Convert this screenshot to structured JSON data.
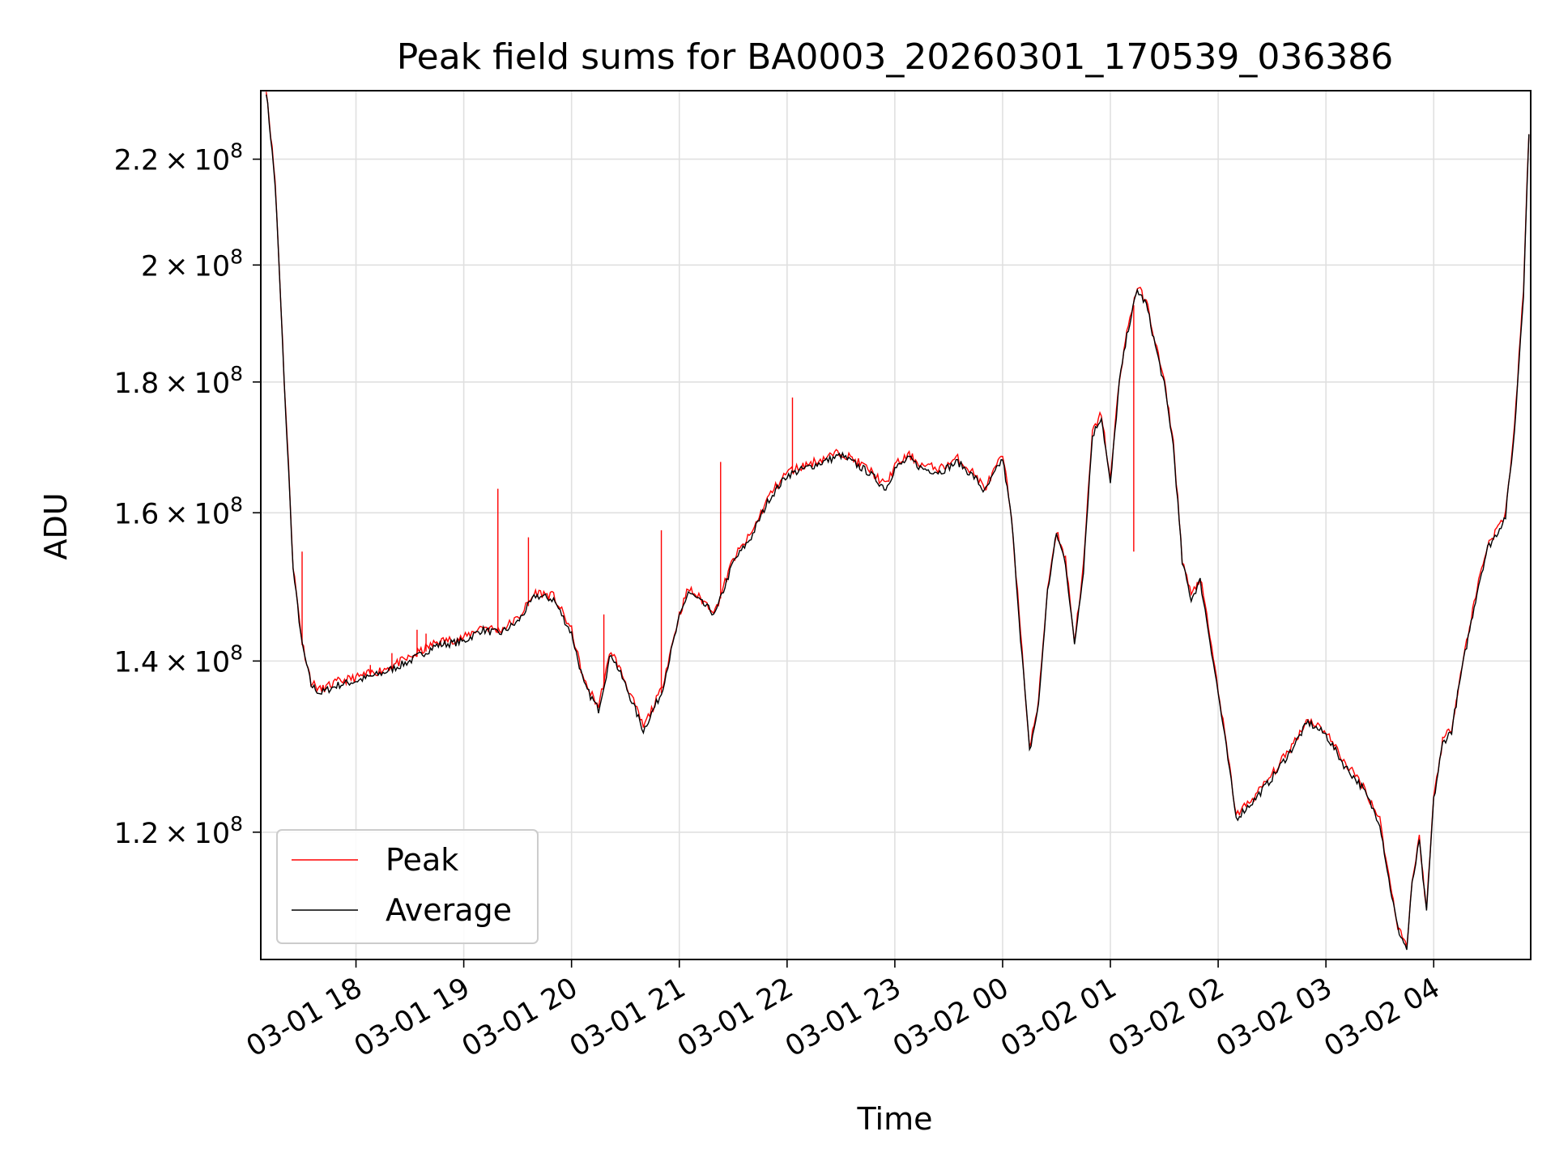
{
  "chart_data": {
    "type": "line",
    "title": "Peak field sums for BA0003_20260301_170539_036386",
    "xlabel": "Time",
    "ylabel": "ADU",
    "y_scale": "log",
    "ylim": [
      107000000,
      234000000
    ],
    "xlim": [
      "03-01 17:07",
      "03-02 04:54"
    ],
    "grid": true,
    "legend_position": "lower left",
    "x_tick_labels": [
      "03-01 18",
      "03-01 19",
      "03-01 20",
      "03-01 21",
      "03-01 22",
      "03-01 23",
      "03-02 00",
      "03-02 01",
      "03-02 02",
      "03-02 03",
      "03-02 04"
    ],
    "x_tick_times": [
      "03-01 18:00",
      "03-01 19:00",
      "03-01 20:00",
      "03-01 21:00",
      "03-01 22:00",
      "03-01 23:00",
      "03-02 00:00",
      "03-02 01:00",
      "03-02 02:00",
      "03-02 03:00",
      "03-02 04:00"
    ],
    "y_ticks": [
      {
        "value": 120000000,
        "mantissa": "1.2",
        "exponent": "8"
      },
      {
        "value": 140000000,
        "mantissa": "1.4",
        "exponent": "8"
      },
      {
        "value": 160000000,
        "mantissa": "1.6",
        "exponent": "8"
      },
      {
        "value": 180000000,
        "mantissa": "1.8",
        "exponent": "8"
      },
      {
        "value": 200000000,
        "mantissa": "2",
        "exponent": "8"
      },
      {
        "value": 220000000,
        "mantissa": "2.2",
        "exponent": "8"
      }
    ],
    "series": [
      {
        "name": "Average",
        "color": "#000000",
        "x": [
          "03-01 17:10",
          "03-01 17:15",
          "03-01 17:20",
          "03-01 17:25",
          "03-01 17:30",
          "03-01 17:35",
          "03-01 17:40",
          "03-01 17:45",
          "03-01 17:50",
          "03-01 18:00",
          "03-01 18:15",
          "03-01 18:30",
          "03-01 18:45",
          "03-01 19:00",
          "03-01 19:10",
          "03-01 19:20",
          "03-01 19:30",
          "03-01 19:40",
          "03-01 19:50",
          "03-01 20:00",
          "03-01 20:07",
          "03-01 20:15",
          "03-01 20:22",
          "03-01 20:30",
          "03-01 20:40",
          "03-01 20:50",
          "03-01 21:00",
          "03-01 21:05",
          "03-01 21:10",
          "03-01 21:20",
          "03-01 21:30",
          "03-01 21:40",
          "03-01 21:50",
          "03-01 22:00",
          "03-01 22:15",
          "03-01 22:30",
          "03-01 22:45",
          "03-01 22:55",
          "03-01 23:00",
          "03-01 23:08",
          "03-01 23:15",
          "03-01 23:25",
          "03-01 23:35",
          "03-01 23:45",
          "03-01 23:50",
          "03-01 23:55",
          "03-02 00:00",
          "03-02 00:05",
          "03-02 00:10",
          "03-02 00:15",
          "03-02 00:20",
          "03-02 00:25",
          "03-02 00:30",
          "03-02 00:35",
          "03-02 00:40",
          "03-02 00:45",
          "03-02 00:50",
          "03-02 00:55",
          "03-02 01:00",
          "03-02 01:05",
          "03-02 01:10",
          "03-02 01:15",
          "03-02 01:20",
          "03-02 01:25",
          "03-02 01:30",
          "03-02 01:35",
          "03-02 01:40",
          "03-02 01:45",
          "03-02 01:50",
          "03-02 02:00",
          "03-02 02:10",
          "03-02 02:20",
          "03-02 02:30",
          "03-02 02:40",
          "03-02 02:50",
          "03-02 03:00",
          "03-02 03:10",
          "03-02 03:20",
          "03-02 03:30",
          "03-02 03:35",
          "03-02 03:40",
          "03-02 03:45",
          "03-02 03:48",
          "03-02 03:52",
          "03-02 03:56",
          "03-02 04:00",
          "03-02 04:05",
          "03-02 04:10",
          "03-02 04:15",
          "03-02 04:20",
          "03-02 04:25",
          "03-02 04:30",
          "03-02 04:35",
          "03-02 04:40",
          "03-02 04:45",
          "03-02 04:50",
          "03-02 04:53"
        ],
        "values": [
          234000000,
          215000000,
          180000000,
          152000000,
          142000000,
          137000000,
          136000000,
          136500000,
          137000000,
          137500000,
          138500000,
          140000000,
          142000000,
          142500000,
          144000000,
          143500000,
          145000000,
          148500000,
          148000000,
          143500000,
          137000000,
          134000000,
          141000000,
          137000000,
          131500000,
          136000000,
          145500000,
          149000000,
          148000000,
          146000000,
          153000000,
          156500000,
          162000000,
          165500000,
          167000000,
          168500000,
          166000000,
          163500000,
          166500000,
          168000000,
          166500000,
          166000000,
          167500000,
          165000000,
          163000000,
          165500000,
          168000000,
          159000000,
          143000000,
          129000000,
          134500000,
          149000000,
          157000000,
          153000000,
          142000000,
          152000000,
          171500000,
          174500000,
          164000000,
          180000000,
          189000000,
          195500000,
          193000000,
          186000000,
          179500000,
          170000000,
          153000000,
          148000000,
          150500000,
          136000000,
          121500000,
          123500000,
          126000000,
          129000000,
          132500000,
          131000000,
          127500000,
          125000000,
          121000000,
          115000000,
          110000000,
          108000000,
          114500000,
          119000000,
          111500000,
          123500000,
          130000000,
          131500000,
          138000000,
          144000000,
          150000000,
          155000000,
          157000000,
          159500000,
          172000000,
          195000000,
          225000000
        ]
      },
      {
        "name": "Peak",
        "color": "#ff0000",
        "spikes": [
          {
            "x": "03-01 17:30",
            "value": 154500000
          },
          {
            "x": "03-01 18:08",
            "value": 139500000
          },
          {
            "x": "03-01 18:20",
            "value": 141000000
          },
          {
            "x": "03-01 18:34",
            "value": 144000000
          },
          {
            "x": "03-01 18:39",
            "value": 143500000
          },
          {
            "x": "03-01 19:19",
            "value": 163500000
          },
          {
            "x": "03-01 19:36",
            "value": 156500000
          },
          {
            "x": "03-01 20:18",
            "value": 146000000
          },
          {
            "x": "03-01 20:50",
            "value": 157500000
          },
          {
            "x": "03-01 21:23",
            "value": 167500000
          },
          {
            "x": "03-01 22:03",
            "value": 177500000
          },
          {
            "x": "03-02 01:13",
            "value": 154500000
          },
          {
            "x": "03-02 03:05",
            "value": 129500000
          }
        ]
      }
    ]
  }
}
